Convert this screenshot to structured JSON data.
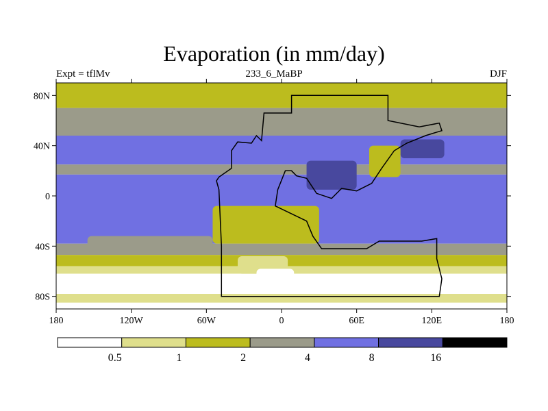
{
  "chart_data": {
    "type": "heatmap",
    "title": "Evaporation (in mm/day)",
    "left_label": "Expt = tflMv",
    "center_label": "233_6_MaBP",
    "right_label": "DJF",
    "xlim": [
      -180,
      180
    ],
    "ylim": [
      -90,
      90
    ],
    "x_ticks": [
      {
        "value": -180,
        "label": "180"
      },
      {
        "value": -120,
        "label": "120W"
      },
      {
        "value": -60,
        "label": "60W"
      },
      {
        "value": 0,
        "label": "0"
      },
      {
        "value": 60,
        "label": "60E"
      },
      {
        "value": 120,
        "label": "120E"
      },
      {
        "value": 180,
        "label": "180"
      }
    ],
    "y_ticks": [
      {
        "value": 80,
        "label": "80N"
      },
      {
        "value": 40,
        "label": "40N"
      },
      {
        "value": 0,
        "label": "0"
      },
      {
        "value": -40,
        "label": "40S"
      },
      {
        "value": -80,
        "label": "80S"
      }
    ],
    "levels": [
      "0.5",
      "1",
      "2",
      "4",
      "8",
      "16"
    ],
    "colors": [
      "#ffffff",
      "#dfdf8c",
      "#bcbc1e",
      "#9b9b8a",
      "#7070e2",
      "#48489e",
      "#000000"
    ],
    "bands": [
      {
        "lat": [
          70,
          90
        ],
        "level": 2
      },
      {
        "lat": [
          48,
          70
        ],
        "level": 3
      },
      {
        "lat": [
          25,
          48
        ],
        "level": 4
      },
      {
        "lat": [
          17,
          25
        ],
        "level": 3
      },
      {
        "lat": [
          -38,
          17
        ],
        "level": 4
      },
      {
        "lat": [
          -47,
          -38
        ],
        "level": 3
      },
      {
        "lat": [
          -56,
          -47
        ],
        "level": 2
      },
      {
        "lat": [
          -62,
          -56
        ],
        "level": 1
      },
      {
        "lat": [
          -78,
          -62
        ],
        "level": 0
      },
      {
        "lat": [
          -85,
          -78
        ],
        "level": 1
      },
      {
        "lat": [
          -90,
          -85
        ],
        "level": 0
      }
    ],
    "patches": [
      {
        "lon": [
          -155,
          -55
        ],
        "lat": [
          -45,
          -32
        ],
        "level": 3
      },
      {
        "lon": [
          -55,
          30
        ],
        "lat": [
          -38,
          -8
        ],
        "level": 2
      },
      {
        "lon": [
          -35,
          5
        ],
        "lat": [
          -62,
          -48
        ],
        "level": 1
      },
      {
        "lon": [
          -20,
          10
        ],
        "lat": [
          -68,
          -58
        ],
        "level": 0
      },
      {
        "lon": [
          20,
          60
        ],
        "lat": [
          5,
          28
        ],
        "level": 5
      },
      {
        "lon": [
          95,
          130
        ],
        "lat": [
          30,
          45
        ],
        "level": 5
      },
      {
        "lon": [
          70,
          95
        ],
        "lat": [
          15,
          40
        ],
        "level": 2
      }
    ],
    "land_outline": [
      [
        -48,
        -80
      ],
      [
        -48,
        -40
      ],
      [
        -50,
        5
      ],
      [
        -52,
        12
      ],
      [
        -50,
        15
      ],
      [
        -40,
        22
      ],
      [
        -40,
        36
      ],
      [
        -35,
        43
      ],
      [
        -24,
        42
      ],
      [
        -20,
        48
      ],
      [
        -16,
        44
      ],
      [
        -14,
        66
      ],
      [
        8,
        66
      ],
      [
        8,
        80
      ],
      [
        85,
        80
      ],
      [
        85,
        60
      ],
      [
        110,
        55
      ],
      [
        126,
        58
      ],
      [
        128,
        52
      ],
      [
        115,
        48
      ],
      [
        100,
        42
      ],
      [
        90,
        36
      ],
      [
        80,
        22
      ],
      [
        72,
        10
      ],
      [
        60,
        4
      ],
      [
        48,
        6
      ],
      [
        40,
        -2
      ],
      [
        28,
        2
      ],
      [
        20,
        14
      ],
      [
        12,
        16
      ],
      [
        8,
        20
      ],
      [
        3,
        20
      ],
      [
        -3,
        5
      ],
      [
        -5,
        -8
      ],
      [
        20,
        -20
      ],
      [
        25,
        -32
      ],
      [
        32,
        -42
      ],
      [
        68,
        -42
      ],
      [
        78,
        -36
      ],
      [
        112,
        -36
      ],
      [
        124,
        -34
      ],
      [
        124,
        -50
      ],
      [
        128,
        -66
      ],
      [
        126,
        -80
      ],
      [
        -48,
        -80
      ]
    ]
  }
}
